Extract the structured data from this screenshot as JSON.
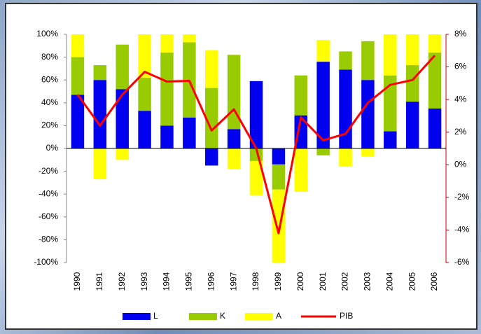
{
  "chart_data": {
    "type": "stacked-bar-line",
    "categories": [
      "1990",
      "1991",
      "1992",
      "1993",
      "1994",
      "1995",
      "1996",
      "1997",
      "1998",
      "1999",
      "2000",
      "2001",
      "2002",
      "2003",
      "2004",
      "2005",
      "2006"
    ],
    "series": [
      {
        "name": "L",
        "color": "#0000ee",
        "values": [
          47,
          60,
          52,
          33,
          20,
          27,
          -15,
          17,
          59,
          -14,
          29,
          76,
          69,
          60,
          15,
          41,
          35
        ]
      },
      {
        "name": "K",
        "color": "#99cc00",
        "values": [
          33,
          13,
          39,
          29,
          64,
          66,
          53,
          65,
          -11,
          -22,
          35,
          -6,
          16,
          34,
          49,
          32,
          49
        ]
      },
      {
        "name": "A",
        "color": "#ffff00",
        "values": [
          20,
          -27,
          -10,
          38,
          16,
          7,
          33,
          -18,
          -30,
          -64,
          -38,
          19,
          -16,
          -7,
          36,
          27,
          16
        ]
      },
      {
        "name": "PIB",
        "color": "#ff0000",
        "axis": "y2",
        "values": [
          4.3,
          2.4,
          4.3,
          5.7,
          5.1,
          5.15,
          2.1,
          3.4,
          1.0,
          -4.2,
          2.9,
          1.5,
          1.9,
          3.8,
          4.9,
          5.2,
          6.7
        ]
      }
    ],
    "ylim": [
      -100,
      100
    ],
    "yticks": [
      {
        "value": -100,
        "label": "-100%"
      },
      {
        "value": -80,
        "label": "-80%"
      },
      {
        "value": -60,
        "label": "-60%"
      },
      {
        "value": -40,
        "label": "-40%"
      },
      {
        "value": -20,
        "label": "-20%"
      },
      {
        "value": 0,
        "label": "0%"
      },
      {
        "value": 20,
        "label": "20%"
      },
      {
        "value": 40,
        "label": "40%"
      },
      {
        "value": 60,
        "label": "60%"
      },
      {
        "value": 80,
        "label": "80%"
      },
      {
        "value": 100,
        "label": "100%"
      }
    ],
    "y2lim": [
      -6,
      8
    ],
    "y2ticks": [
      {
        "value": -6,
        "label": "-6%"
      },
      {
        "value": -4,
        "label": "-4%"
      },
      {
        "value": -2,
        "label": "-2%"
      },
      {
        "value": 0,
        "label": "0%"
      },
      {
        "value": 2,
        "label": "2%"
      },
      {
        "value": 4,
        "label": "4%"
      },
      {
        "value": 6,
        "label": "6%"
      },
      {
        "value": 8,
        "label": "8%"
      }
    ],
    "y2_axis_color": "#cc0000",
    "legend": "bottom"
  }
}
